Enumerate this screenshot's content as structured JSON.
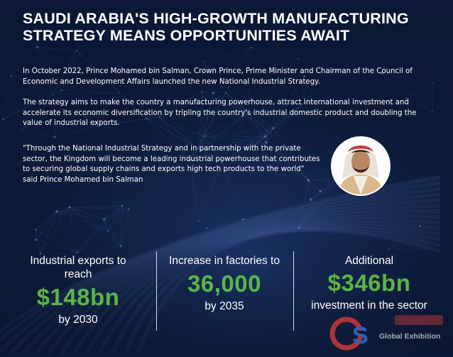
{
  "title": "SAUDI ARABIA'S HIGH-GROWTH MANUFACTURING STRATEGY MEANS OPPORTUNITIES AWAIT",
  "paragraphs": {
    "intro": "In October 2022, Prince Mohamed bin Salman, Crown Prince, Prime Minister and Chairman of the Council of Economic and Development Affairs launched the new National Industrial Strategy.",
    "aims": "The strategy aims to make the country a manufacturing powerhouse, attract international investment and accelerate its economic diversification by tripling the country's industrial domestic product and doubling the value of industrial exports.",
    "quote": "\"Through the National Industrial Strategy and in partnership with the private sector, the Kingdom will become a leading industrial powerhouse that contributes to securing global supply chains and exports high tech products to the world\" said Prince Mohamed bin Salman"
  },
  "stats": [
    {
      "label": "Industrial exports to reach",
      "value": "$148bn",
      "foot": "by 2030"
    },
    {
      "label": "Increase in factories to",
      "value": "36,000",
      "foot": "by 2035"
    },
    {
      "label": "Additional",
      "value": "$346bn",
      "foot": "investment in the sector"
    }
  ],
  "watermark": {
    "brand": "Global Exhibition"
  },
  "colors": {
    "background": "#0c1a38",
    "accent_green": "#5cb447",
    "text": "#ffffff"
  },
  "icons": {
    "portrait": "portrait-photo"
  }
}
